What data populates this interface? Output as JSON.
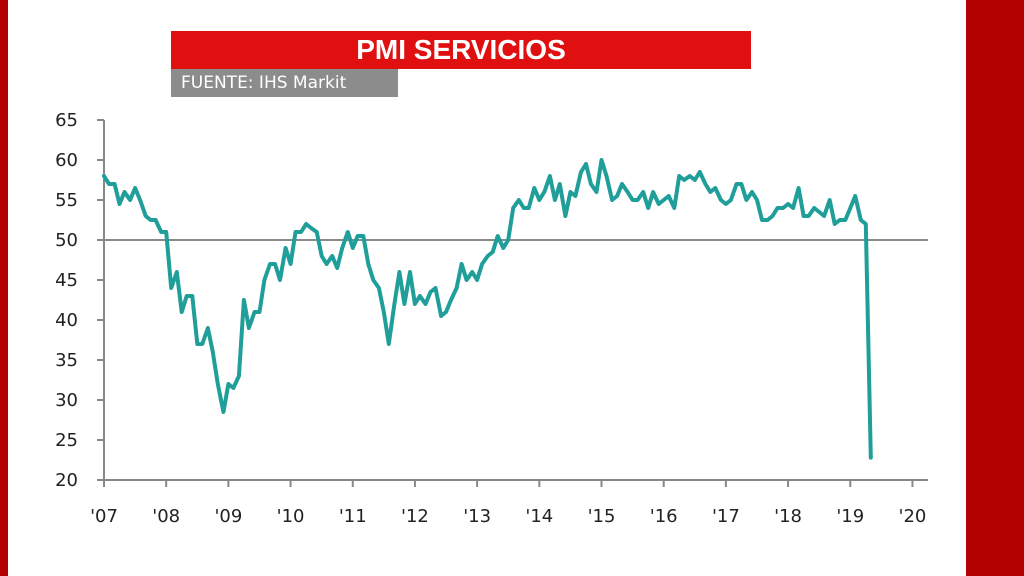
{
  "header": {
    "title": "PMI SERVICIOS",
    "source": "FUENTE: IHS Markit"
  },
  "colors": {
    "frame": "#b30000",
    "title_bg": "#e01010",
    "source_bg": "#8c8c8c",
    "line": "#1f9e9a"
  },
  "chart_data": {
    "type": "line",
    "title": "PMI SERVICIOS",
    "xlabel": "",
    "ylabel": "",
    "ylim": [
      20,
      65
    ],
    "xlim": [
      2007.0,
      2020.25
    ],
    "yticks": [
      20,
      25,
      30,
      35,
      40,
      45,
      50,
      55,
      60,
      65
    ],
    "xtick_labels": [
      "'07",
      "'08",
      "'09",
      "'10",
      "'11",
      "'12",
      "'13",
      "'14",
      "'15",
      "'16",
      "'17",
      "'18",
      "'19",
      "'20"
    ],
    "xtick_values": [
      2007,
      2008,
      2009,
      2010,
      2011,
      2012,
      2013,
      2014,
      2015,
      2016,
      2017,
      2018,
      2019,
      2020
    ],
    "reference_line": 50,
    "grid": false,
    "legend": "none",
    "series": [
      {
        "values": [
          [
            2007.0,
            58.0
          ],
          [
            2007.08,
            57.0
          ],
          [
            2007.17,
            57.0
          ],
          [
            2007.25,
            54.5
          ],
          [
            2007.33,
            56.0
          ],
          [
            2007.42,
            55.0
          ],
          [
            2007.5,
            56.5
          ],
          [
            2007.58,
            55.0
          ],
          [
            2007.67,
            53.0
          ],
          [
            2007.75,
            52.5
          ],
          [
            2007.83,
            52.5
          ],
          [
            2007.92,
            51.0
          ],
          [
            2008.0,
            51.0
          ],
          [
            2008.08,
            44.0
          ],
          [
            2008.17,
            46.0
          ],
          [
            2008.25,
            41.0
          ],
          [
            2008.33,
            43.0
          ],
          [
            2008.42,
            43.0
          ],
          [
            2008.5,
            37.0
          ],
          [
            2008.58,
            37.0
          ],
          [
            2008.67,
            39.0
          ],
          [
            2008.75,
            36.0
          ],
          [
            2008.83,
            32.0
          ],
          [
            2008.92,
            28.5
          ],
          [
            2009.0,
            32.0
          ],
          [
            2009.08,
            31.5
          ],
          [
            2009.17,
            33.0
          ],
          [
            2009.25,
            42.5
          ],
          [
            2009.33,
            39.0
          ],
          [
            2009.42,
            41.0
          ],
          [
            2009.5,
            41.0
          ],
          [
            2009.58,
            45.0
          ],
          [
            2009.67,
            47.0
          ],
          [
            2009.75,
            47.0
          ],
          [
            2009.83,
            45.0
          ],
          [
            2009.92,
            49.0
          ],
          [
            2010.0,
            47.0
          ],
          [
            2010.08,
            51.0
          ],
          [
            2010.17,
            51.0
          ],
          [
            2010.25,
            52.0
          ],
          [
            2010.33,
            51.5
          ],
          [
            2010.42,
            51.0
          ],
          [
            2010.5,
            48.0
          ],
          [
            2010.58,
            47.0
          ],
          [
            2010.67,
            48.0
          ],
          [
            2010.75,
            46.5
          ],
          [
            2010.83,
            49.0
          ],
          [
            2010.92,
            51.0
          ],
          [
            2011.0,
            49.0
          ],
          [
            2011.08,
            50.5
          ],
          [
            2011.17,
            50.5
          ],
          [
            2011.25,
            47.0
          ],
          [
            2011.33,
            45.0
          ],
          [
            2011.42,
            44.0
          ],
          [
            2011.5,
            41.0
          ],
          [
            2011.58,
            37.0
          ],
          [
            2011.67,
            42.0
          ],
          [
            2011.75,
            46.0
          ],
          [
            2011.83,
            42.0
          ],
          [
            2011.92,
            46.0
          ],
          [
            2012.0,
            42.0
          ],
          [
            2012.08,
            43.0
          ],
          [
            2012.17,
            42.0
          ],
          [
            2012.25,
            43.5
          ],
          [
            2012.33,
            44.0
          ],
          [
            2012.42,
            40.5
          ],
          [
            2012.5,
            41.0
          ],
          [
            2012.58,
            42.5
          ],
          [
            2012.67,
            44.0
          ],
          [
            2012.75,
            47.0
          ],
          [
            2012.83,
            45.0
          ],
          [
            2012.92,
            46.0
          ],
          [
            2013.0,
            45.0
          ],
          [
            2013.08,
            47.0
          ],
          [
            2013.17,
            48.0
          ],
          [
            2013.25,
            48.5
          ],
          [
            2013.33,
            50.5
          ],
          [
            2013.42,
            49.0
          ],
          [
            2013.5,
            50.0
          ],
          [
            2013.58,
            54.0
          ],
          [
            2013.67,
            55.0
          ],
          [
            2013.75,
            54.0
          ],
          [
            2013.83,
            54.0
          ],
          [
            2013.92,
            56.5
          ],
          [
            2014.0,
            55.0
          ],
          [
            2014.08,
            56.0
          ],
          [
            2014.17,
            58.0
          ],
          [
            2014.25,
            55.0
          ],
          [
            2014.33,
            57.0
          ],
          [
            2014.42,
            53.0
          ],
          [
            2014.5,
            56.0
          ],
          [
            2014.58,
            55.5
          ],
          [
            2014.67,
            58.5
          ],
          [
            2014.75,
            59.5
          ],
          [
            2014.83,
            57.0
          ],
          [
            2014.92,
            56.0
          ],
          [
            2015.0,
            60.0
          ],
          [
            2015.08,
            58.0
          ],
          [
            2015.17,
            55.0
          ],
          [
            2015.25,
            55.5
          ],
          [
            2015.33,
            57.0
          ],
          [
            2015.42,
            56.0
          ],
          [
            2015.5,
            55.0
          ],
          [
            2015.58,
            55.0
          ],
          [
            2015.67,
            56.0
          ],
          [
            2015.75,
            54.0
          ],
          [
            2015.83,
            56.0
          ],
          [
            2015.92,
            54.5
          ],
          [
            2016.0,
            55.0
          ],
          [
            2016.08,
            55.5
          ],
          [
            2016.17,
            54.0
          ],
          [
            2016.25,
            58.0
          ],
          [
            2016.33,
            57.5
          ],
          [
            2016.42,
            58.0
          ],
          [
            2016.5,
            57.5
          ],
          [
            2016.58,
            58.5
          ],
          [
            2016.67,
            57.0
          ],
          [
            2016.75,
            56.0
          ],
          [
            2016.83,
            56.5
          ],
          [
            2016.92,
            55.0
          ],
          [
            2017.0,
            54.5
          ],
          [
            2017.08,
            55.0
          ],
          [
            2017.17,
            57.0
          ],
          [
            2017.25,
            57.0
          ],
          [
            2017.33,
            55.0
          ],
          [
            2017.42,
            56.0
          ],
          [
            2017.5,
            55.0
          ],
          [
            2017.58,
            52.5
          ],
          [
            2017.67,
            52.5
          ],
          [
            2017.75,
            53.0
          ],
          [
            2017.83,
            54.0
          ],
          [
            2017.92,
            54.0
          ],
          [
            2018.0,
            54.5
          ],
          [
            2018.08,
            54.0
          ],
          [
            2018.17,
            56.5
          ],
          [
            2018.25,
            53.0
          ],
          [
            2018.33,
            53.0
          ],
          [
            2018.42,
            54.0
          ],
          [
            2018.5,
            53.5
          ],
          [
            2018.58,
            53.0
          ],
          [
            2018.67,
            55.0
          ],
          [
            2018.75,
            52.0
          ],
          [
            2018.83,
            52.5
          ],
          [
            2018.92,
            52.5
          ],
          [
            2019.0,
            54.0
          ],
          [
            2019.08,
            55.5
          ],
          [
            2019.17,
            52.5
          ],
          [
            2019.25,
            52.0
          ],
          [
            2019.33,
            22.8
          ]
        ]
      }
    ]
  }
}
